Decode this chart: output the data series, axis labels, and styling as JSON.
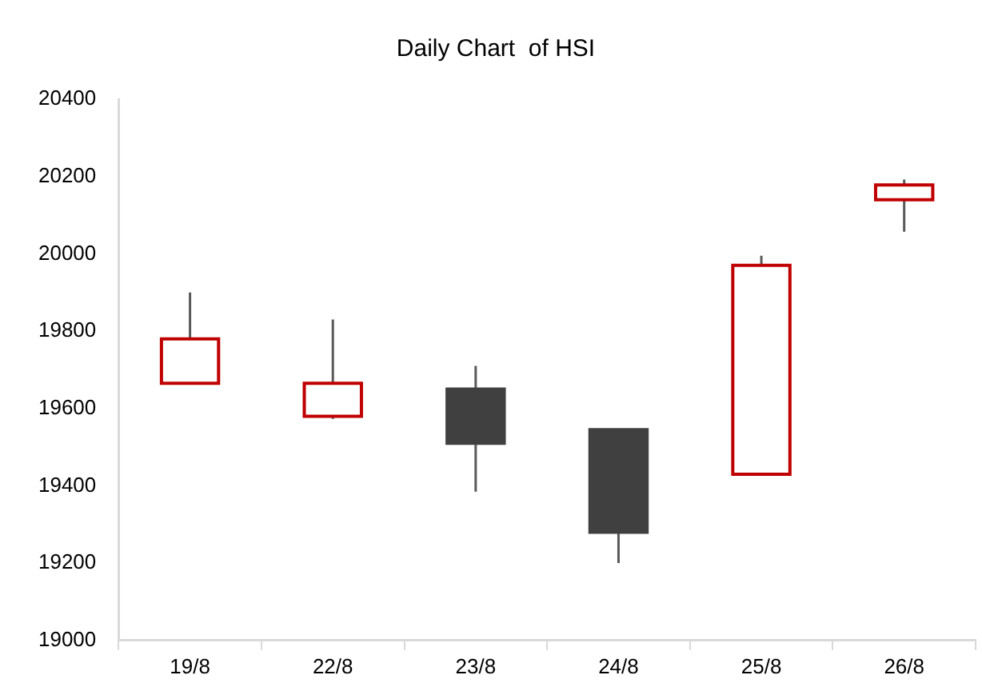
{
  "chart_data": {
    "type": "candlestick",
    "title": "Daily Chart  of HSI",
    "categories": [
      "19/8",
      "22/8",
      "23/8",
      "24/8",
      "25/8",
      "26/8"
    ],
    "ohlc": [
      [
        19665,
        19900,
        19665,
        19780
      ],
      [
        19580,
        19830,
        19573,
        19665
      ],
      [
        19650,
        19710,
        19385,
        19510
      ],
      [
        19545,
        19548,
        19200,
        19280
      ],
      [
        19430,
        19995,
        19430,
        19970
      ],
      [
        20140,
        20192,
        20057,
        20178
      ]
    ],
    "colors": [
      "#c00000",
      "#c00000",
      "#404040",
      "#404040",
      "#c00000",
      "#c00000"
    ],
    "ylim": [
      19000,
      20400
    ],
    "yticks": [
      19000,
      19200,
      19400,
      19600,
      19800,
      20000,
      20200,
      20400
    ],
    "legend": false
  }
}
